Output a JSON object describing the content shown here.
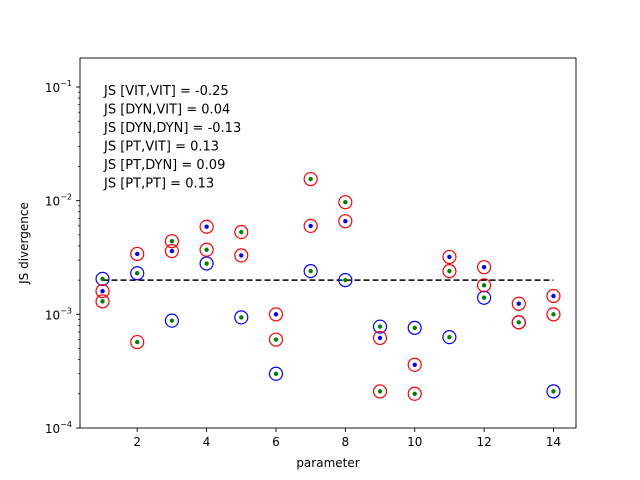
{
  "chart_data": {
    "type": "scatter",
    "title": "",
    "xlabel": "parameter",
    "ylabel": "JS divergence",
    "xlim": [
      0.35,
      14.65
    ],
    "ylim": [
      0.0001,
      0.18
    ],
    "yscale": "log",
    "grid": false,
    "xticks": [
      2,
      4,
      6,
      8,
      10,
      12,
      14
    ],
    "yticks": [
      {
        "value": 0.0001,
        "base": "10",
        "exp": "−4"
      },
      {
        "value": 0.001,
        "base": "10",
        "exp": "−3"
      },
      {
        "value": 0.01,
        "base": "10",
        "exp": "−2"
      },
      {
        "value": 0.1,
        "base": "10",
        "exp": "−1"
      }
    ],
    "annotations": [
      "JS [VIT,VIT] = -0.25",
      "JS [DYN,VIT] = 0.04",
      "JS [DYN,DYN] = -0.13",
      "JS [PT,VIT] = 0.13",
      "JS [PT,DYN] = 0.09",
      "JS [PT,PT] = 0.13"
    ],
    "reference_line": {
      "y": 0.002,
      "x": [
        1,
        14
      ],
      "style": "dashed",
      "color": "#000000"
    },
    "series": [
      {
        "marker": "open-circle",
        "color": "#0000ff",
        "points": [
          [
            1,
            0.00205
          ],
          [
            2,
            0.0023
          ],
          [
            3,
            0.00088
          ],
          [
            4,
            0.0028
          ],
          [
            5,
            0.00094
          ],
          [
            6,
            0.0003
          ],
          [
            7,
            0.0024
          ],
          [
            8,
            0.002
          ],
          [
            9,
            0.00078
          ],
          [
            10,
            0.00076
          ],
          [
            11,
            0.00063
          ],
          [
            12,
            0.0014
          ],
          [
            13,
            0.00085
          ],
          [
            14,
            0.00021
          ]
        ]
      },
      {
        "marker": "open-circle",
        "color": "#ff0000",
        "points": [
          [
            1,
            0.0016
          ],
          [
            1,
            0.0013
          ],
          [
            2,
            0.0034
          ],
          [
            2,
            0.00057
          ],
          [
            3,
            0.0044
          ],
          [
            3,
            0.0036
          ],
          [
            4,
            0.0059
          ],
          [
            4,
            0.0037
          ],
          [
            5,
            0.0053
          ],
          [
            5,
            0.0033
          ],
          [
            6,
            0.001
          ],
          [
            6,
            0.0006
          ],
          [
            7,
            0.0155
          ],
          [
            7,
            0.006
          ],
          [
            8,
            0.0097
          ],
          [
            8,
            0.0066
          ],
          [
            9,
            0.00062
          ],
          [
            9,
            0.00021
          ],
          [
            10,
            0.00036
          ],
          [
            10,
            0.0002
          ],
          [
            11,
            0.0032
          ],
          [
            11,
            0.0024
          ],
          [
            12,
            0.0026
          ],
          [
            12,
            0.0018
          ],
          [
            13,
            0.00124
          ],
          [
            13,
            0.00085
          ],
          [
            14,
            0.00145
          ],
          [
            14,
            0.001
          ]
        ]
      },
      {
        "marker": "dot",
        "color": "#0000ff",
        "points": [
          [
            1,
            0.0016
          ],
          [
            2,
            0.0034
          ],
          [
            3,
            0.0036
          ],
          [
            4,
            0.0059
          ],
          [
            5,
            0.0033
          ],
          [
            6,
            0.001
          ],
          [
            7,
            0.006
          ],
          [
            8,
            0.0066
          ],
          [
            9,
            0.00062
          ],
          [
            10,
            0.00036
          ],
          [
            11,
            0.0032
          ],
          [
            12,
            0.0026
          ],
          [
            13,
            0.00124
          ],
          [
            14,
            0.00145
          ]
        ]
      },
      {
        "marker": "dot",
        "color": "#008000",
        "points": [
          [
            1,
            0.00205
          ],
          [
            1,
            0.0013
          ],
          [
            2,
            0.0023
          ],
          [
            2,
            0.00057
          ],
          [
            3,
            0.0044
          ],
          [
            3,
            0.00088
          ],
          [
            4,
            0.0037
          ],
          [
            4,
            0.0028
          ],
          [
            5,
            0.0053
          ],
          [
            5,
            0.00094
          ],
          [
            6,
            0.0006
          ],
          [
            6,
            0.0003
          ],
          [
            7,
            0.0155
          ],
          [
            7,
            0.0024
          ],
          [
            8,
            0.0097
          ],
          [
            8,
            0.002
          ],
          [
            9,
            0.00078
          ],
          [
            9,
            0.00021
          ],
          [
            10,
            0.00076
          ],
          [
            10,
            0.0002
          ],
          [
            11,
            0.0024
          ],
          [
            11,
            0.00063
          ],
          [
            12,
            0.0018
          ],
          [
            12,
            0.0014
          ],
          [
            13,
            0.00085
          ],
          [
            14,
            0.001
          ],
          [
            14,
            0.00021
          ]
        ]
      }
    ]
  }
}
